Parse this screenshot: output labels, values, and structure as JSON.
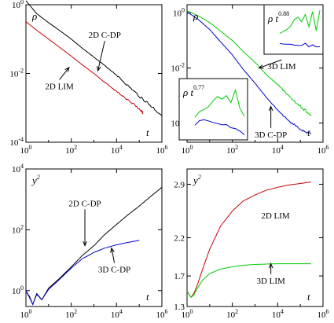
{
  "chart_data": [
    {
      "type": "line",
      "id": "top-left",
      "xscale": "log",
      "yscale": "log",
      "xlim": [
        1,
        1000000
      ],
      "ylim": [
        0.0001,
        1
      ],
      "x_ticks": [
        {
          "base": "10",
          "exp": "0"
        },
        {
          "base": "10",
          "exp": "2"
        },
        {
          "base": "10",
          "exp": "4"
        },
        {
          "base": "10",
          "exp": "6"
        }
      ],
      "y_ticks": [
        {
          "base": "10",
          "exp": "0"
        },
        {
          "base": "10",
          "exp": "-2"
        },
        {
          "base": "10",
          "exp": "-4"
        }
      ],
      "ylabel": "ρ",
      "xlabel": "t",
      "series": [
        {
          "name": "2D C-DP",
          "color": "#000000",
          "noisy": true,
          "x": [
            1,
            3,
            10,
            30,
            100,
            300,
            1000,
            3000,
            10000,
            30000,
            100000,
            300000,
            1000000
          ],
          "y": [
            1.3,
            0.55,
            0.3,
            0.18,
            0.1,
            0.055,
            0.03,
            0.017,
            0.009,
            0.0045,
            0.0022,
            0.0012,
            0.0006
          ]
        },
        {
          "name": "2D LIM",
          "color": "#cc0000",
          "noisy": true,
          "x": [
            1,
            3,
            10,
            30,
            100,
            300,
            1000,
            3000,
            10000,
            30000,
            100000,
            150000
          ],
          "y": [
            0.32,
            0.18,
            0.1,
            0.058,
            0.032,
            0.018,
            0.01,
            0.0055,
            0.003,
            0.0017,
            0.00095,
            0.0007
          ]
        }
      ],
      "annotations": [
        {
          "text": "2D  C-DP",
          "tx": 3000,
          "ty": 0.11,
          "ax": 1500,
          "ay": 0.012
        },
        {
          "text": "2D  LIM",
          "tx": 30,
          "ty": 0.0035,
          "ax": 80,
          "ay": 0.015
        }
      ]
    },
    {
      "type": "line",
      "id": "top-right",
      "xscale": "log",
      "yscale": "log",
      "xlim": [
        1,
        1000000
      ],
      "ylim": [
        2e-05,
        2
      ],
      "x_ticks": [
        {
          "base": "10",
          "exp": "0"
        },
        {
          "base": "10",
          "exp": "2"
        },
        {
          "base": "10",
          "exp": "4"
        },
        {
          "base": "10",
          "exp": "6"
        }
      ],
      "y_ticks": [
        {
          "base": "10",
          "exp": "0"
        },
        {
          "base": "10",
          "exp": "-2"
        },
        {
          "base": "10",
          "exp": "-4"
        }
      ],
      "ylabel": "ρ",
      "xlabel": "t",
      "series": [
        {
          "name": "3D LIM",
          "color": "#00cc00",
          "noisy": true,
          "x": [
            1,
            3,
            10,
            30,
            100,
            300,
            1000,
            3000,
            10000,
            30000,
            100000,
            300000
          ],
          "y": [
            1.2,
            0.8,
            0.45,
            0.22,
            0.1,
            0.04,
            0.016,
            0.006,
            0.0025,
            0.001,
            0.0004,
            0.00018
          ]
        },
        {
          "name": "3D C-DP",
          "color": "#0000cc",
          "noisy": true,
          "x": [
            1,
            3,
            10,
            30,
            100,
            300,
            1000,
            3000,
            10000,
            30000,
            100000,
            300000
          ],
          "y": [
            1.1,
            0.6,
            0.25,
            0.09,
            0.03,
            0.009,
            0.0028,
            0.0009,
            0.0003,
            0.00012,
            6e-05,
            4e-05
          ]
        }
      ],
      "annotations": [
        {
          "text": "3D  LIM",
          "tx": 15000,
          "ty": 0.009,
          "ax": 1500,
          "ay": 0.01
        },
        {
          "text": "3D  C-DP",
          "tx": 5000,
          "ty": 3e-05,
          "ax": 5000,
          "ay": 0.0004
        }
      ],
      "insets": [
        {
          "label": "ρ t",
          "exp": "0.88",
          "series": [
            {
              "color": "#00cc00",
              "values": [
                0.4,
                0.45,
                0.5,
                0.6,
                0.75,
                0.8,
                0.7,
                0.9,
                0.6,
                0.95,
                0.5,
                1.0
              ]
            },
            {
              "color": "#0000cc",
              "values": [
                0.15,
                0.14,
                0.13,
                0.12,
                0.11,
                0.1,
                0.1,
                0.1,
                0.1,
                0.11,
                0.09,
                0.1
              ]
            }
          ]
        },
        {
          "label": "ρ t",
          "exp": "0.77",
          "series": [
            {
              "color": "#00cc00",
              "values": [
                0.35,
                0.45,
                0.5,
                0.55,
                0.65,
                0.75,
                0.7,
                0.8,
                0.6,
                0.85,
                0.5,
                0.4
              ]
            },
            {
              "color": "#0000cc",
              "values": [
                0.2,
                0.28,
                0.3,
                0.28,
                0.25,
                0.22,
                0.2,
                0.18,
                0.12,
                0.1,
                0.06,
                0.05
              ]
            }
          ]
        }
      ]
    },
    {
      "type": "line",
      "id": "bottom-left",
      "xscale": "log",
      "yscale": "log",
      "xlim": [
        1,
        1000000
      ],
      "ylim": [
        0.3,
        10000
      ],
      "x_ticks": [
        {
          "base": "10",
          "exp": "0"
        },
        {
          "base": "10",
          "exp": "2"
        },
        {
          "base": "10",
          "exp": "4"
        },
        {
          "base": "10",
          "exp": "6"
        }
      ],
      "y_ticks": [
        {
          "base": "10",
          "exp": "0"
        },
        {
          "base": "10",
          "exp": "2"
        },
        {
          "base": "10",
          "exp": "4"
        }
      ],
      "ylabel": "y",
      "ylabel_exp": "2",
      "xlabel": "t",
      "series": [
        {
          "name": "2D C-DP",
          "color": "#000000",
          "noisy": false,
          "x": [
            1,
            1.5,
            2,
            3,
            5,
            10,
            30,
            100,
            300,
            1000,
            3000,
            10000,
            30000,
            100000,
            300000,
            1000000
          ],
          "y": [
            1.0,
            0.6,
            0.35,
            0.8,
            0.5,
            1.2,
            2.5,
            6,
            14,
            30,
            70,
            150,
            300,
            600,
            1200,
            2500
          ]
        },
        {
          "name": "3D C-DP",
          "color": "#0000cc",
          "noisy": false,
          "x": [
            1,
            1.5,
            2,
            3,
            5,
            10,
            30,
            100,
            300,
            1000,
            3000,
            10000,
            30000,
            100000
          ],
          "y": [
            1.0,
            0.55,
            0.35,
            0.75,
            0.5,
            1.1,
            2.3,
            5.5,
            11,
            18,
            25,
            32,
            38,
            45
          ]
        }
      ],
      "annotations": [
        {
          "text": "2D  C-DP",
          "tx": 400,
          "ty": 600,
          "ax": 400,
          "ay": 30
        },
        {
          "text": "3D  C-DP",
          "tx": 8000,
          "ty": 4,
          "ax": 6000,
          "ay": 25
        }
      ]
    },
    {
      "type": "line",
      "id": "bottom-right",
      "xscale": "log",
      "yscale": "linear",
      "xlim": [
        1,
        1000000
      ],
      "ylim": [
        1.3,
        3.1
      ],
      "x_ticks": [
        {
          "base": "10",
          "exp": "0"
        },
        {
          "base": "10",
          "exp": "2"
        },
        {
          "base": "10",
          "exp": "4"
        },
        {
          "base": "10",
          "exp": "6"
        }
      ],
      "y_ticks_linear": [
        "1.3",
        "1.7",
        "2.2",
        "2.9"
      ],
      "ylabel": "y",
      "ylabel_exp": "2",
      "xlabel": "t",
      "series": [
        {
          "name": "2D LIM",
          "color": "#cc0000",
          "noisy": false,
          "x": [
            1,
            1.5,
            2,
            3,
            5,
            10,
            30,
            100,
            300,
            1000,
            3000,
            10000,
            30000,
            100000,
            300000
          ],
          "y": [
            1.5,
            1.42,
            1.47,
            1.6,
            1.8,
            2.05,
            2.35,
            2.55,
            2.68,
            2.76,
            2.82,
            2.86,
            2.89,
            2.91,
            2.93
          ]
        },
        {
          "name": "3D LIM",
          "color": "#00cc00",
          "noisy": false,
          "x": [
            1,
            1.5,
            2,
            3,
            5,
            10,
            30,
            100,
            300,
            1000,
            3000,
            10000,
            30000,
            100000,
            300000
          ],
          "y": [
            1.5,
            1.42,
            1.45,
            1.55,
            1.65,
            1.73,
            1.79,
            1.82,
            1.84,
            1.85,
            1.855,
            1.86,
            1.86,
            1.86,
            1.86
          ]
        }
      ],
      "annotations": [
        {
          "text": "2D  LIM",
          "tx": 8000,
          "ty": 2.45,
          "ax": 0,
          "ay": 0
        },
        {
          "text": "3D  LIM",
          "tx": 5000,
          "ty": 1.6,
          "ax": 5000,
          "ay": 1.86
        }
      ]
    }
  ]
}
